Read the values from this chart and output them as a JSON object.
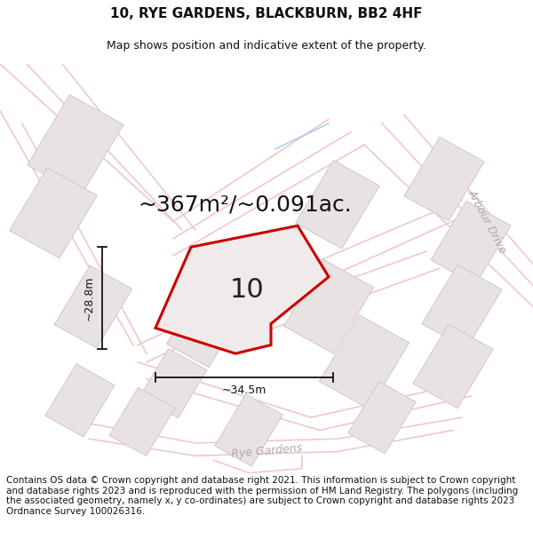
{
  "title_line1": "10, RYE GARDENS, BLACKBURN, BB2 4HF",
  "title_line2": "Map shows position and indicative extent of the property.",
  "area_text": "~367m²/~0.091ac.",
  "dim_width": "~34.5m",
  "dim_height": "~28.8m",
  "property_number": "10",
  "footer_text": "Contains OS data © Crown copyright and database right 2021. This information is subject to Crown copyright and database rights 2023 and is reproduced with the permission of HM Land Registry. The polygons (including the associated geometry, namely x, y co-ordinates) are subject to Crown copyright and database rights 2023 Ordnance Survey 100026316.",
  "map_bg": "#f7f4f4",
  "road_color": "#f0c8c8",
  "road_lw": 1.0,
  "building_face": "#e8e2e2",
  "building_edge": "#d0c8c8",
  "property_fill": "#f0eaea",
  "property_edge": "#cc0000",
  "property_lw": 2.2,
  "dim_color": "#111111",
  "dim_lw": 1.3,
  "water_color": "#a0c8e8",
  "arbour_drive_color": "#b0a8a8",
  "rye_gardens_color": "#b0a8a8",
  "title_fontsize": 11,
  "subtitle_fontsize": 9,
  "area_fontsize": 18,
  "number_fontsize": 22,
  "footer_fontsize": 7.5,
  "street_fontsize": 9
}
